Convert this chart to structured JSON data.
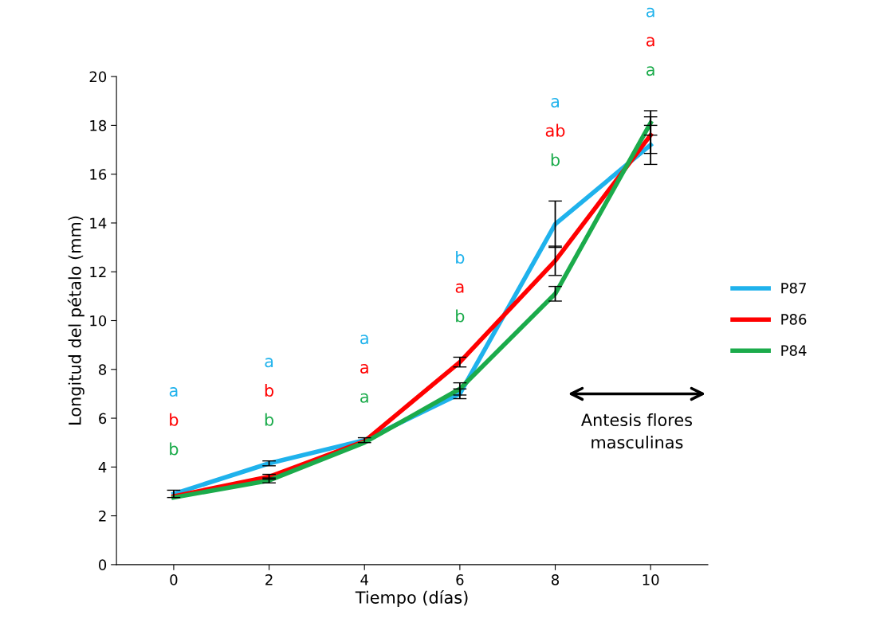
{
  "chart_data": {
    "type": "line",
    "xlabel": "Tiempo (días)",
    "ylabel": "Longitud del pétalo (mm)",
    "categories": [
      "0",
      "2",
      "4",
      "6",
      "8",
      "10"
    ],
    "series": [
      {
        "name": "P87",
        "color": "#1fb2ec",
        "values": [
          2.9,
          4.15,
          5.1,
          7.0,
          13.95,
          17.2
        ],
        "errors": [
          0.15,
          0.1,
          0.1,
          0.2,
          0.95,
          0.8
        ]
      },
      {
        "name": "P86",
        "color": "#ff0000",
        "values": [
          2.8,
          3.6,
          5.05,
          8.3,
          12.45,
          17.6
        ],
        "errors": [
          null,
          0.1,
          null,
          0.2,
          0.6,
          0.75
        ]
      },
      {
        "name": "P84",
        "color": "#1bab4b",
        "values": [
          2.75,
          3.45,
          5.0,
          7.2,
          11.1,
          18.1
        ],
        "errors": [
          null,
          0.1,
          null,
          0.25,
          0.3,
          0.5
        ]
      }
    ],
    "ylim": [
      0,
      20
    ],
    "yticks": [
      0,
      2,
      4,
      6,
      8,
      10,
      12,
      14,
      16,
      18,
      20
    ],
    "grid": false,
    "legend": "right",
    "marker": "none",
    "line_style": "solid",
    "annotations": [
      "a",
      "b",
      "b",
      "a",
      "b",
      "b",
      "a",
      "a",
      "a",
      "b",
      "a",
      "b",
      "a",
      "ab",
      "b",
      "a",
      "a",
      "a",
      "Antesis flores\nmasculinas"
    ]
  }
}
